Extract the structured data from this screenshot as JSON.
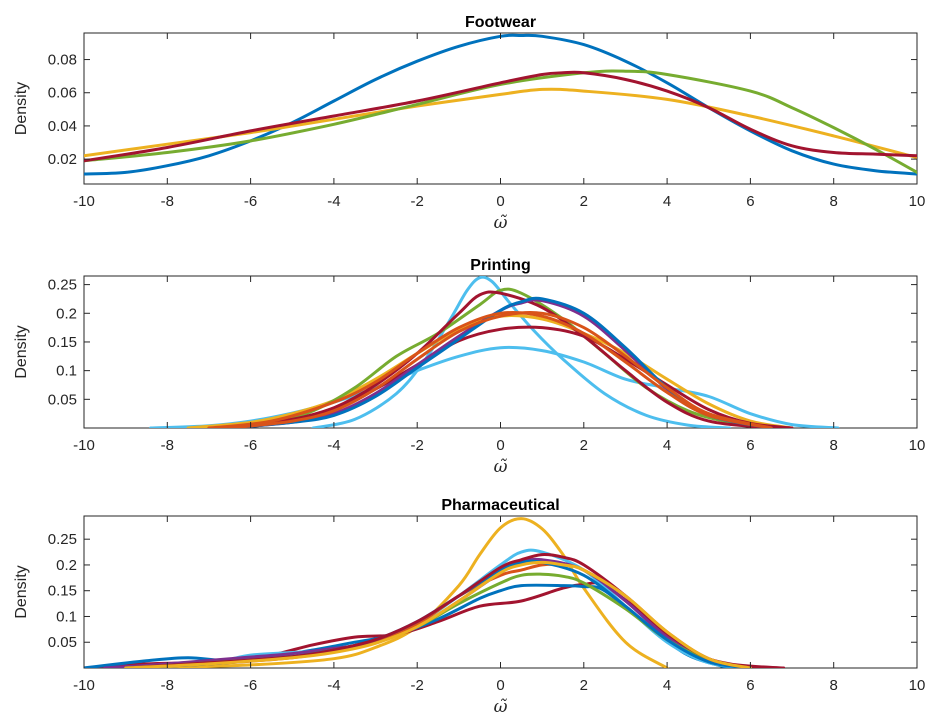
{
  "chart_data": [
    {
      "type": "line",
      "title": "Footwear",
      "xlabel": "ω̃",
      "ylabel": "Density",
      "xlim": [
        -10,
        10
      ],
      "ylim": [
        0.005,
        0.096
      ],
      "xticks": [
        -10,
        -8,
        -6,
        -4,
        -2,
        0,
        2,
        4,
        6,
        8,
        10
      ],
      "xticklabels": [
        "-10",
        "-8",
        "-6",
        "-4",
        "-2",
        "0",
        "2",
        "4",
        "6",
        "8",
        "10"
      ],
      "yticks": [
        0.02,
        0.04,
        0.06,
        0.08
      ],
      "yticklabels": [
        "0.02",
        "0.04",
        "0.06",
        "0.08"
      ],
      "grid": false,
      "series": [
        {
          "color": "#0072BD",
          "x": [
            -10,
            -9,
            -8,
            -7,
            -6,
            -5,
            -4,
            -3,
            -2,
            -1,
            0,
            0.5,
            1,
            2,
            3,
            4,
            5,
            6,
            7,
            8,
            9,
            10
          ],
          "y": [
            0.011,
            0.012,
            0.016,
            0.022,
            0.031,
            0.042,
            0.055,
            0.068,
            0.079,
            0.088,
            0.094,
            0.0945,
            0.094,
            0.089,
            0.079,
            0.066,
            0.051,
            0.037,
            0.025,
            0.017,
            0.013,
            0.011
          ]
        },
        {
          "color": "#EDB120",
          "x": [
            -10,
            -8,
            -6,
            -4,
            -2,
            0,
            1,
            2,
            4,
            6,
            8,
            10
          ],
          "y": [
            0.022,
            0.029,
            0.036,
            0.044,
            0.052,
            0.059,
            0.062,
            0.061,
            0.056,
            0.046,
            0.034,
            0.021
          ]
        },
        {
          "color": "#77AC30",
          "x": [
            -10,
            -8,
            -6,
            -4,
            -2,
            0,
            2,
            3,
            4,
            6,
            7,
            8,
            9,
            10
          ],
          "y": [
            0.019,
            0.024,
            0.031,
            0.041,
            0.053,
            0.065,
            0.072,
            0.073,
            0.071,
            0.061,
            0.051,
            0.039,
            0.026,
            0.012
          ]
        },
        {
          "color": "#A2142F",
          "x": [
            -10,
            -8,
            -6,
            -4,
            -2,
            0,
            1,
            1.5,
            2,
            3,
            4,
            5,
            6,
            7,
            8,
            9,
            10
          ],
          "y": [
            0.019,
            0.027,
            0.037,
            0.046,
            0.055,
            0.066,
            0.071,
            0.072,
            0.072,
            0.068,
            0.061,
            0.051,
            0.038,
            0.028,
            0.024,
            0.023,
            0.022
          ]
        }
      ]
    },
    {
      "type": "line",
      "title": "Printing",
      "xlabel": "ω̃",
      "ylabel": "Density",
      "xlim": [
        -10,
        10
      ],
      "ylim": [
        0,
        0.265
      ],
      "xticks": [
        -10,
        -8,
        -6,
        -4,
        -2,
        0,
        2,
        4,
        6,
        8,
        10
      ],
      "xticklabels": [
        "-10",
        "-8",
        "-6",
        "-4",
        "-2",
        "0",
        "2",
        "4",
        "6",
        "8",
        "10"
      ],
      "yticks": [
        0.05,
        0.1,
        0.15,
        0.2,
        0.25
      ],
      "yticklabels": [
        "0.05",
        "0.1",
        "0.15",
        "0.2",
        "0.25"
      ],
      "grid": false,
      "series": [
        {
          "color": "#4DBEEE",
          "x": [
            -8.4,
            -7,
            -6,
            -5,
            -4,
            -3,
            -2,
            -1,
            0,
            1,
            2,
            3,
            4,
            5,
            6,
            7,
            8.1
          ],
          "y": [
            0.0,
            0.004,
            0.012,
            0.026,
            0.045,
            0.07,
            0.1,
            0.125,
            0.14,
            0.135,
            0.115,
            0.085,
            0.07,
            0.055,
            0.025,
            0.006,
            0.0
          ]
        },
        {
          "color": "#4DBEEE",
          "x": [
            -4.5,
            -3.5,
            -2.5,
            -1.8,
            -1.2,
            -0.8,
            -0.5,
            -0.2,
            0.2,
            0.8,
            1.5,
            2.5,
            3.5,
            4.5,
            5.5
          ],
          "y": [
            0.0,
            0.015,
            0.06,
            0.12,
            0.19,
            0.24,
            0.262,
            0.255,
            0.22,
            0.17,
            0.12,
            0.06,
            0.022,
            0.005,
            0.0
          ]
        },
        {
          "color": "#EDB120",
          "x": [
            -7.5,
            -6,
            -5,
            -4,
            -3,
            -2,
            -1,
            0,
            1,
            2,
            3,
            4,
            5,
            6,
            7
          ],
          "y": [
            0.0,
            0.01,
            0.025,
            0.048,
            0.085,
            0.13,
            0.172,
            0.195,
            0.19,
            0.165,
            0.13,
            0.085,
            0.042,
            0.012,
            0.0
          ]
        },
        {
          "color": "#77AC30",
          "x": [
            -6.5,
            -5.5,
            -4.5,
            -3.5,
            -2.5,
            -1.5,
            -0.5,
            0,
            0.5,
            1.5,
            2.5,
            3.5,
            4.5,
            5.5,
            6.5
          ],
          "y": [
            0.0,
            0.01,
            0.03,
            0.07,
            0.125,
            0.165,
            0.215,
            0.24,
            0.235,
            0.19,
            0.13,
            0.07,
            0.03,
            0.01,
            0.0
          ]
        },
        {
          "color": "#A2142F",
          "x": [
            -6.5,
            -5,
            -4,
            -3,
            -2,
            -1,
            0,
            1,
            2,
            3,
            4,
            5,
            6,
            7
          ],
          "y": [
            0.0,
            0.015,
            0.035,
            0.068,
            0.11,
            0.152,
            0.172,
            0.175,
            0.16,
            0.12,
            0.075,
            0.032,
            0.008,
            0.0
          ]
        },
        {
          "color": "#A2142F",
          "x": [
            -6.5,
            -5,
            -4,
            -3,
            -2,
            -1,
            -0.5,
            0,
            1,
            2,
            3,
            4,
            5,
            6.5
          ],
          "y": [
            0.0,
            0.012,
            0.035,
            0.075,
            0.13,
            0.2,
            0.232,
            0.235,
            0.21,
            0.16,
            0.1,
            0.045,
            0.012,
            0.0
          ]
        },
        {
          "color": "#7E2F8E",
          "x": [
            -6.5,
            -5,
            -4,
            -3,
            -2,
            -1,
            0,
            0.5,
            1,
            2,
            3,
            4,
            5,
            6.5
          ],
          "y": [
            0.0,
            0.01,
            0.025,
            0.06,
            0.11,
            0.16,
            0.205,
            0.218,
            0.222,
            0.195,
            0.135,
            0.068,
            0.022,
            0.0
          ]
        },
        {
          "color": "#0072BD",
          "x": [
            -6.5,
            -5,
            -4,
            -3,
            -2,
            -1,
            0,
            0.5,
            1,
            2,
            3,
            4,
            5,
            6.5
          ],
          "y": [
            0.0,
            0.01,
            0.022,
            0.055,
            0.105,
            0.155,
            0.205,
            0.22,
            0.225,
            0.2,
            0.14,
            0.07,
            0.022,
            0.0
          ]
        },
        {
          "color": "#D95319",
          "x": [
            -7,
            -5.5,
            -4,
            -3,
            -2,
            -1,
            0,
            1,
            2,
            3,
            4,
            5,
            6.5
          ],
          "y": [
            0.0,
            0.012,
            0.045,
            0.08,
            0.13,
            0.175,
            0.2,
            0.195,
            0.165,
            0.115,
            0.062,
            0.022,
            0.0
          ]
        },
        {
          "color": "#D95319",
          "x": [
            -6.5,
            -5,
            -4,
            -3,
            -2,
            -1,
            0,
            1,
            2,
            3,
            4,
            5,
            6.5
          ],
          "y": [
            0.0,
            0.012,
            0.03,
            0.068,
            0.12,
            0.168,
            0.195,
            0.2,
            0.175,
            0.125,
            0.07,
            0.025,
            0.0
          ]
        }
      ]
    },
    {
      "type": "line",
      "title": "Pharmaceutical",
      "xlabel": "ω̃",
      "ylabel": "Density",
      "xlim": [
        -10,
        10
      ],
      "ylim": [
        0,
        0.295
      ],
      "xticks": [
        -10,
        -8,
        -6,
        -4,
        -2,
        0,
        2,
        4,
        6,
        8,
        10
      ],
      "xticklabels": [
        "-10",
        "-8",
        "-6",
        "-4",
        "-2",
        "0",
        "2",
        "4",
        "6",
        "8",
        "10"
      ],
      "yticks": [
        0.05,
        0.1,
        0.15,
        0.2,
        0.25
      ],
      "yticklabels": [
        "0.05",
        "0.1",
        "0.15",
        "0.2",
        "0.25"
      ],
      "grid": false,
      "series": [
        {
          "color": "#EDB120",
          "x": [
            -8.5,
            -6,
            -4,
            -3,
            -2,
            -1,
            -0.5,
            0,
            0.5,
            1,
            1.5,
            2,
            3,
            4
          ],
          "y": [
            0.0,
            0.006,
            0.018,
            0.04,
            0.08,
            0.16,
            0.22,
            0.272,
            0.29,
            0.27,
            0.22,
            0.155,
            0.05,
            0.0
          ]
        },
        {
          "color": "#A2142F",
          "x": [
            -10,
            -8.5,
            -7.5,
            -6.5,
            -5.5,
            -4.5,
            -3.5,
            -2.5,
            -1.5,
            -0.5,
            0.5,
            1.5,
            2,
            2.5,
            3.5,
            4.5,
            5.5,
            6.8
          ],
          "y": [
            0.0,
            0.008,
            0.01,
            0.015,
            0.025,
            0.045,
            0.06,
            0.065,
            0.09,
            0.12,
            0.13,
            0.155,
            0.162,
            0.16,
            0.1,
            0.035,
            0.008,
            0.0
          ]
        },
        {
          "color": "#0072BD",
          "x": [
            -10,
            -8.5,
            -7.5,
            -6.5,
            -5.5,
            -4.5,
            -3.5,
            -2.5,
            -1.5,
            -0.5,
            0,
            0.5,
            1.5,
            2,
            2.5,
            3.5,
            4.5,
            5.5
          ],
          "y": [
            0.0,
            0.014,
            0.02,
            0.014,
            0.022,
            0.035,
            0.05,
            0.065,
            0.095,
            0.135,
            0.15,
            0.16,
            0.16,
            0.158,
            0.15,
            0.085,
            0.025,
            0.0
          ]
        },
        {
          "color": "#4DBEEE",
          "x": [
            -9,
            -7,
            -6,
            -5,
            -4,
            -3,
            -2,
            -1,
            0,
            0.5,
            1,
            2,
            3,
            4,
            5,
            6
          ],
          "y": [
            0.0,
            0.01,
            0.025,
            0.03,
            0.035,
            0.05,
            0.085,
            0.14,
            0.2,
            0.225,
            0.225,
            0.19,
            0.12,
            0.05,
            0.01,
            0.0
          ]
        },
        {
          "color": "#7E2F8E",
          "x": [
            -9.5,
            -8,
            -6.5,
            -5,
            -4,
            -3,
            -2,
            -1,
            0,
            0.5,
            1,
            2,
            3,
            4,
            5,
            6
          ],
          "y": [
            0.0,
            0.008,
            0.018,
            0.028,
            0.038,
            0.05,
            0.08,
            0.13,
            0.185,
            0.205,
            0.21,
            0.19,
            0.13,
            0.06,
            0.015,
            0.0
          ]
        },
        {
          "color": "#77AC30",
          "x": [
            -9,
            -7,
            -5,
            -4,
            -3,
            -2,
            -1,
            0,
            0.5,
            1,
            1.5,
            2,
            3,
            4,
            5,
            6
          ],
          "y": [
            0.0,
            0.01,
            0.022,
            0.035,
            0.05,
            0.08,
            0.125,
            0.165,
            0.18,
            0.182,
            0.178,
            0.165,
            0.115,
            0.055,
            0.015,
            0.0
          ]
        },
        {
          "color": "#D95319",
          "x": [
            -9,
            -7,
            -5,
            -4,
            -3,
            -2,
            -1,
            0,
            0.5,
            1,
            1.5,
            2,
            3,
            4,
            5,
            6
          ],
          "y": [
            0.0,
            0.008,
            0.02,
            0.032,
            0.05,
            0.085,
            0.14,
            0.18,
            0.19,
            0.2,
            0.2,
            0.19,
            0.14,
            0.07,
            0.018,
            0.0
          ]
        },
        {
          "color": "#0072BD",
          "x": [
            -9,
            -7,
            -5,
            -4,
            -3,
            -2,
            -1,
            0,
            0.5,
            1,
            2,
            3,
            4,
            5,
            6
          ],
          "y": [
            0.0,
            0.008,
            0.022,
            0.035,
            0.055,
            0.09,
            0.14,
            0.19,
            0.205,
            0.205,
            0.18,
            0.12,
            0.055,
            0.012,
            0.0
          ]
        },
        {
          "color": "#A2142F",
          "x": [
            -9,
            -7,
            -5,
            -4,
            -3,
            -2,
            -1,
            0,
            0.5,
            1,
            1.5,
            2,
            3,
            4,
            5,
            6
          ],
          "y": [
            0.0,
            0.01,
            0.022,
            0.035,
            0.055,
            0.09,
            0.14,
            0.195,
            0.21,
            0.22,
            0.215,
            0.2,
            0.14,
            0.068,
            0.018,
            0.0
          ]
        },
        {
          "color": "#EDB120",
          "x": [
            -9,
            -7,
            -5,
            -4,
            -3,
            -2,
            -1,
            0,
            0.5,
            1,
            1.5,
            2,
            3,
            4,
            5,
            6
          ],
          "y": [
            0.0,
            0.008,
            0.02,
            0.03,
            0.048,
            0.08,
            0.13,
            0.185,
            0.2,
            0.205,
            0.2,
            0.19,
            0.14,
            0.07,
            0.018,
            0.0
          ]
        }
      ]
    }
  ]
}
